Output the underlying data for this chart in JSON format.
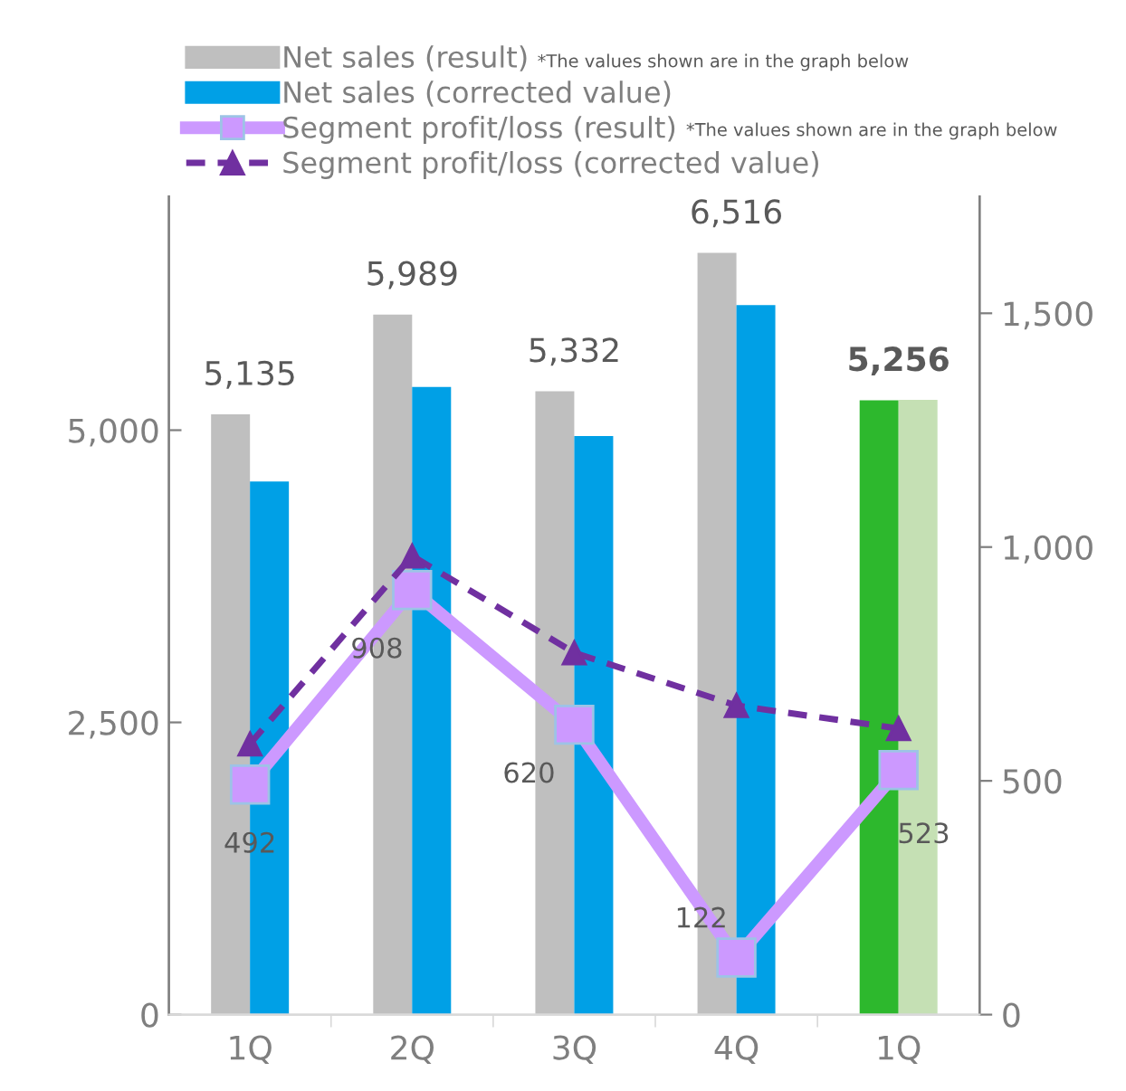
{
  "chart_data": {
    "type": "bar",
    "categories": [
      "1Q",
      "2Q",
      "3Q",
      "4Q",
      "1Q"
    ],
    "series": [
      {
        "name": "Net sales (result)",
        "color": "#bfbfbf",
        "colors": [
          "#bfbfbf",
          "#bfbfbf",
          "#bfbfbf",
          "#bfbfbf",
          "#2db82d"
        ],
        "values": [
          5135,
          5989,
          5332,
          6516,
          5256
        ],
        "value_labels": [
          "5,135",
          "5,989",
          "5,332",
          "6,516",
          "5,256"
        ]
      },
      {
        "name": "Net sales (corrected value)",
        "color": "#00a0e6",
        "colors": [
          "#00a0e6",
          "#00a0e6",
          "#00a0e6",
          "#00a0e6",
          "#c5e0b4"
        ],
        "values": [
          4560,
          5370,
          4950,
          6070,
          5260
        ]
      },
      {
        "name": "Segment profit/loss (result)",
        "type": "line",
        "axis": "y2",
        "color": "#cc99ff",
        "marker": "square",
        "line_style": "solid",
        "values": [
          492,
          908,
          620,
          122,
          523
        ],
        "value_labels": [
          "492",
          "908",
          "620",
          "122",
          "523"
        ]
      },
      {
        "name": "Segment profit/loss (corrected value)",
        "type": "line",
        "axis": "y2",
        "color": "#7030a0",
        "marker": "triangle",
        "line_style": "dashed",
        "values": [
          579,
          981,
          774,
          661,
          612
        ]
      }
    ],
    "ylim": [
      0,
      7000
    ],
    "yticks": [
      0,
      {
        "value": 2500,
        "label": "2,500"
      },
      {
        "value": 5000,
        "label": "5,000"
      }
    ],
    "y2lim": [
      0,
      1750
    ],
    "y2ticks": [
      0,
      500,
      {
        "value": 1000,
        "label": "1,000"
      },
      {
        "value": 1500,
        "label": "1,500"
      }
    ],
    "annotations": [
      "*The values shown are in the graph below",
      "*The values shown are in the graph below"
    ],
    "legend": "top",
    "grid": false
  }
}
